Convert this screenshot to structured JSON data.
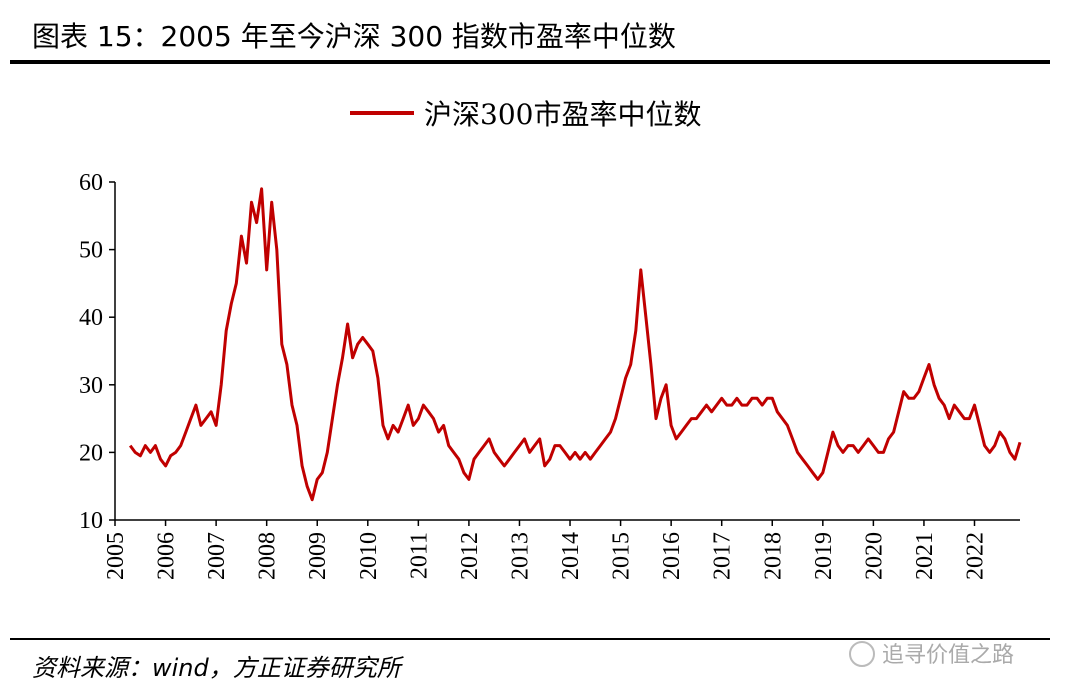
{
  "header": {
    "title": "图表 15：2005 年至今沪深 300 指数市盈率中位数"
  },
  "chart_data": {
    "type": "line",
    "x": [
      2005.3,
      2005.4,
      2005.5,
      2005.6,
      2005.7,
      2005.8,
      2005.9,
      2006.0,
      2006.1,
      2006.2,
      2006.3,
      2006.4,
      2006.5,
      2006.6,
      2006.7,
      2006.8,
      2006.9,
      2007.0,
      2007.1,
      2007.2,
      2007.3,
      2007.4,
      2007.5,
      2007.6,
      2007.7,
      2007.8,
      2007.9,
      2008.0,
      2008.1,
      2008.2,
      2008.3,
      2008.4,
      2008.5,
      2008.6,
      2008.7,
      2008.8,
      2008.9,
      2009.0,
      2009.1,
      2009.2,
      2009.3,
      2009.4,
      2009.5,
      2009.6,
      2009.7,
      2009.8,
      2009.9,
      2010.0,
      2010.1,
      2010.2,
      2010.3,
      2010.4,
      2010.5,
      2010.6,
      2010.7,
      2010.8,
      2010.9,
      2011.0,
      2011.1,
      2011.2,
      2011.3,
      2011.4,
      2011.5,
      2011.6,
      2011.7,
      2011.8,
      2011.9,
      2012.0,
      2012.1,
      2012.2,
      2012.3,
      2012.4,
      2012.5,
      2012.6,
      2012.7,
      2012.8,
      2012.9,
      2013.0,
      2013.1,
      2013.2,
      2013.3,
      2013.4,
      2013.5,
      2013.6,
      2013.7,
      2013.8,
      2013.9,
      2014.0,
      2014.1,
      2014.2,
      2014.3,
      2014.4,
      2014.5,
      2014.6,
      2014.7,
      2014.8,
      2014.9,
      2015.0,
      2015.1,
      2015.2,
      2015.3,
      2015.4,
      2015.5,
      2015.6,
      2015.7,
      2015.8,
      2015.9,
      2016.0,
      2016.1,
      2016.2,
      2016.3,
      2016.4,
      2016.5,
      2016.6,
      2016.7,
      2016.8,
      2016.9,
      2017.0,
      2017.1,
      2017.2,
      2017.3,
      2017.4,
      2017.5,
      2017.6,
      2017.7,
      2017.8,
      2017.9,
      2018.0,
      2018.1,
      2018.2,
      2018.3,
      2018.4,
      2018.5,
      2018.6,
      2018.7,
      2018.8,
      2018.9,
      2019.0,
      2019.1,
      2019.2,
      2019.3,
      2019.4,
      2019.5,
      2019.6,
      2019.7,
      2019.8,
      2019.9,
      2020.0,
      2020.1,
      2020.2,
      2020.3,
      2020.4,
      2020.5,
      2020.6,
      2020.7,
      2020.8,
      2020.9,
      2021.0,
      2021.1,
      2021.2,
      2021.3,
      2021.4,
      2021.5,
      2021.6,
      2021.7,
      2021.8,
      2021.9,
      2022.0,
      2022.1,
      2022.2,
      2022.3,
      2022.4,
      2022.5,
      2022.6,
      2022.7,
      2022.8,
      2022.9
    ],
    "series": [
      {
        "name": "沪深300市盈率中位数",
        "color": "#c00000",
        "values": [
          21,
          20,
          19.5,
          21,
          20,
          21,
          19,
          18,
          19.5,
          20,
          21,
          23,
          25,
          27,
          24,
          25,
          26,
          24,
          30,
          38,
          42,
          45,
          52,
          48,
          57,
          54,
          59,
          47,
          57,
          50,
          36,
          33,
          27,
          24,
          18,
          15,
          13,
          16,
          17,
          20,
          25,
          30,
          34,
          39,
          34,
          36,
          37,
          36,
          35,
          31,
          24,
          22,
          24,
          23,
          25,
          27,
          24,
          25,
          27,
          26,
          25,
          23,
          24,
          21,
          20,
          19,
          17,
          16,
          19,
          20,
          21,
          22,
          20,
          19,
          18,
          19,
          20,
          21,
          22,
          20,
          21,
          22,
          18,
          19,
          21,
          21,
          20,
          19,
          20,
          19,
          20,
          19,
          20,
          21,
          22,
          23,
          25,
          28,
          31,
          33,
          38,
          47,
          40,
          33,
          25,
          28,
          30,
          24,
          22,
          23,
          24,
          25,
          25,
          26,
          27,
          26,
          27,
          28,
          27,
          27,
          28,
          27,
          27,
          28,
          28,
          27,
          28,
          28,
          26,
          25,
          24,
          22,
          20,
          19,
          18,
          17,
          16,
          17,
          20,
          23,
          21,
          20,
          21,
          21,
          20,
          21,
          22,
          21,
          20,
          20,
          22,
          23,
          26,
          29,
          28,
          28,
          29,
          31,
          33,
          30,
          28,
          27,
          25,
          27,
          26,
          25,
          25,
          27,
          24,
          21,
          20,
          21,
          23,
          22,
          20,
          19,
          21.5
        ]
      }
    ],
    "xlim": [
      2005,
      2022.9
    ],
    "xticks": [
      2005,
      2006,
      2007,
      2008,
      2009,
      2010,
      2011,
      2012,
      2013,
      2014,
      2015,
      2016,
      2017,
      2018,
      2019,
      2020,
      2021,
      2022
    ],
    "ylim": [
      10,
      60
    ],
    "yticks": [
      10,
      20,
      30,
      40,
      50,
      60
    ],
    "legend": "top"
  },
  "footer": {
    "source": "资料来源：wind，方正证券研究所",
    "watermark": "追寻价值之路"
  }
}
